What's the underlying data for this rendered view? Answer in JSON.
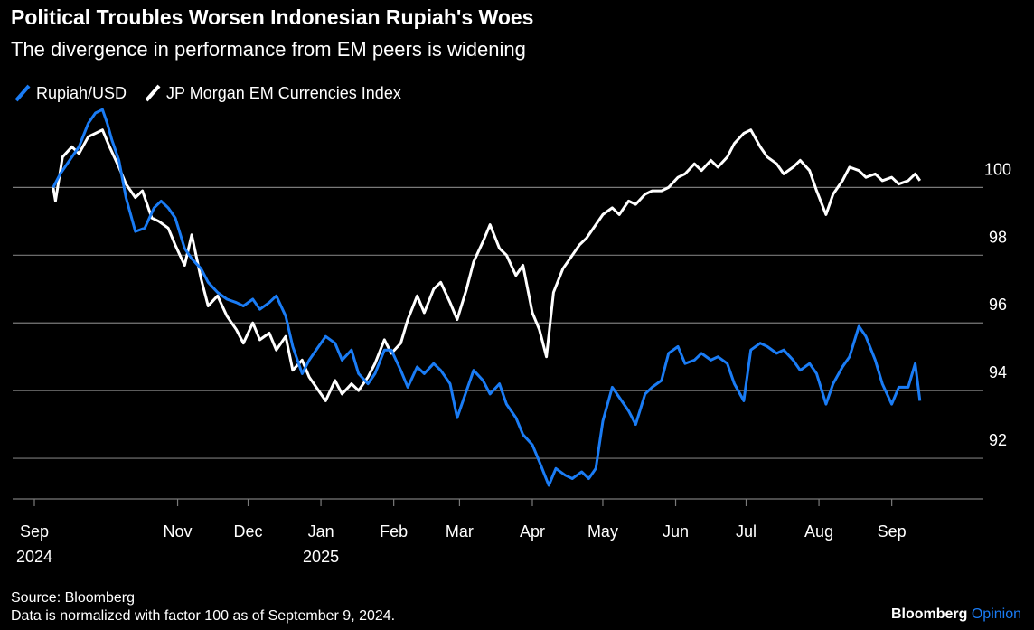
{
  "chart_data": {
    "type": "line",
    "title": "Political Troubles Worsen Indonesian Rupiah's Woes",
    "subtitle": "The divergence in performance from EM peers is widening",
    "x_ticks": [
      {
        "label": "Sep",
        "sublabel": "2024",
        "date": "2024-09-01"
      },
      {
        "label": "Nov",
        "sublabel": "",
        "date": "2024-11-01"
      },
      {
        "label": "Dec",
        "sublabel": "",
        "date": "2024-12-01"
      },
      {
        "label": "Jan",
        "sublabel": "2025",
        "date": "2025-01-01"
      },
      {
        "label": "Feb",
        "sublabel": "",
        "date": "2025-02-01"
      },
      {
        "label": "Mar",
        "sublabel": "",
        "date": "2025-03-01"
      },
      {
        "label": "Apr",
        "sublabel": "",
        "date": "2025-04-01"
      },
      {
        "label": "May",
        "sublabel": "",
        "date": "2025-05-01"
      },
      {
        "label": "Jun",
        "sublabel": "",
        "date": "2025-06-01"
      },
      {
        "label": "Jul",
        "sublabel": "",
        "date": "2025-07-01"
      },
      {
        "label": "Aug",
        "sublabel": "",
        "date": "2025-08-01"
      },
      {
        "label": "Sep",
        "sublabel": "",
        "date": "2025-09-01"
      }
    ],
    "y_ticks": [
      92,
      94,
      96,
      98,
      100
    ],
    "ylim": [
      90.8,
      102.6
    ],
    "xlim": [
      "2024-09-01",
      "2025-10-10"
    ],
    "grid": "horizontal",
    "legend_position": "top-left",
    "series": [
      {
        "name": "Rupiah/USD",
        "color": "#1a7cf5",
        "points": [
          [
            "2024-09-09",
            100.0
          ],
          [
            "2024-09-12",
            100.4
          ],
          [
            "2024-09-16",
            100.8
          ],
          [
            "2024-09-20",
            101.2
          ],
          [
            "2024-09-24",
            101.9
          ],
          [
            "2024-09-27",
            102.2
          ],
          [
            "2024-09-30",
            102.3
          ],
          [
            "2024-10-02",
            101.9
          ],
          [
            "2024-10-04",
            101.4
          ],
          [
            "2024-10-07",
            100.8
          ],
          [
            "2024-10-10",
            99.7
          ],
          [
            "2024-10-14",
            98.7
          ],
          [
            "2024-10-18",
            98.8
          ],
          [
            "2024-10-22",
            99.4
          ],
          [
            "2024-10-25",
            99.6
          ],
          [
            "2024-10-28",
            99.4
          ],
          [
            "2024-10-31",
            99.1
          ],
          [
            "2024-11-04",
            98.2
          ],
          [
            "2024-11-07",
            97.9
          ],
          [
            "2024-11-11",
            97.6
          ],
          [
            "2024-11-14",
            97.2
          ],
          [
            "2024-11-18",
            96.9
          ],
          [
            "2024-11-22",
            96.7
          ],
          [
            "2024-11-26",
            96.6
          ],
          [
            "2024-11-29",
            96.5
          ],
          [
            "2024-12-03",
            96.7
          ],
          [
            "2024-12-06",
            96.4
          ],
          [
            "2024-12-10",
            96.6
          ],
          [
            "2024-12-13",
            96.8
          ],
          [
            "2024-12-17",
            96.2
          ],
          [
            "2024-12-20",
            95.3
          ],
          [
            "2024-12-24",
            94.5
          ],
          [
            "2024-12-27",
            94.9
          ],
          [
            "2024-12-31",
            95.3
          ],
          [
            "2025-01-03",
            95.6
          ],
          [
            "2025-01-07",
            95.4
          ],
          [
            "2025-01-10",
            94.9
          ],
          [
            "2025-01-14",
            95.2
          ],
          [
            "2025-01-17",
            94.5
          ],
          [
            "2025-01-21",
            94.2
          ],
          [
            "2025-01-24",
            94.5
          ],
          [
            "2025-01-28",
            95.2
          ],
          [
            "2025-01-31",
            95.2
          ],
          [
            "2025-02-04",
            94.6
          ],
          [
            "2025-02-07",
            94.1
          ],
          [
            "2025-02-11",
            94.7
          ],
          [
            "2025-02-14",
            94.5
          ],
          [
            "2025-02-18",
            94.8
          ],
          [
            "2025-02-21",
            94.6
          ],
          [
            "2025-02-25",
            94.2
          ],
          [
            "2025-02-28",
            93.2
          ],
          [
            "2025-03-04",
            94.0
          ],
          [
            "2025-03-07",
            94.6
          ],
          [
            "2025-03-11",
            94.3
          ],
          [
            "2025-03-14",
            93.9
          ],
          [
            "2025-03-18",
            94.2
          ],
          [
            "2025-03-21",
            93.6
          ],
          [
            "2025-03-25",
            93.2
          ],
          [
            "2025-03-28",
            92.7
          ],
          [
            "2025-04-01",
            92.4
          ],
          [
            "2025-04-04",
            91.9
          ],
          [
            "2025-04-08",
            91.2
          ],
          [
            "2025-04-11",
            91.7
          ],
          [
            "2025-04-15",
            91.5
          ],
          [
            "2025-04-18",
            91.4
          ],
          [
            "2025-04-22",
            91.6
          ],
          [
            "2025-04-25",
            91.4
          ],
          [
            "2025-04-28",
            91.7
          ],
          [
            "2025-05-01",
            93.1
          ],
          [
            "2025-05-05",
            94.1
          ],
          [
            "2025-05-08",
            93.8
          ],
          [
            "2025-05-12",
            93.4
          ],
          [
            "2025-05-15",
            93.0
          ],
          [
            "2025-05-19",
            93.9
          ],
          [
            "2025-05-22",
            94.1
          ],
          [
            "2025-05-26",
            94.3
          ],
          [
            "2025-05-29",
            95.1
          ],
          [
            "2025-06-02",
            95.3
          ],
          [
            "2025-06-05",
            94.8
          ],
          [
            "2025-06-09",
            94.9
          ],
          [
            "2025-06-12",
            95.1
          ],
          [
            "2025-06-16",
            94.9
          ],
          [
            "2025-06-19",
            95.0
          ],
          [
            "2025-06-23",
            94.8
          ],
          [
            "2025-06-26",
            94.2
          ],
          [
            "2025-06-30",
            93.7
          ],
          [
            "2025-07-03",
            95.2
          ],
          [
            "2025-07-07",
            95.4
          ],
          [
            "2025-07-10",
            95.3
          ],
          [
            "2025-07-14",
            95.1
          ],
          [
            "2025-07-17",
            95.2
          ],
          [
            "2025-07-21",
            94.9
          ],
          [
            "2025-07-24",
            94.6
          ],
          [
            "2025-07-28",
            94.8
          ],
          [
            "2025-07-31",
            94.5
          ],
          [
            "2025-08-04",
            93.6
          ],
          [
            "2025-08-07",
            94.2
          ],
          [
            "2025-08-11",
            94.7
          ],
          [
            "2025-08-14",
            95.0
          ],
          [
            "2025-08-18",
            95.9
          ],
          [
            "2025-08-21",
            95.6
          ],
          [
            "2025-08-25",
            94.9
          ],
          [
            "2025-08-28",
            94.2
          ],
          [
            "2025-09-01",
            93.6
          ],
          [
            "2025-09-04",
            94.1
          ],
          [
            "2025-09-08",
            94.1
          ],
          [
            "2025-09-11",
            94.8
          ],
          [
            "2025-09-13",
            93.7
          ]
        ]
      },
      {
        "name": "JP Morgan EM Currencies Index",
        "color": "#ffffff",
        "points": [
          [
            "2024-09-09",
            100.0
          ],
          [
            "2024-09-10",
            99.6
          ],
          [
            "2024-09-13",
            100.9
          ],
          [
            "2024-09-17",
            101.2
          ],
          [
            "2024-09-20",
            101.0
          ],
          [
            "2024-09-24",
            101.5
          ],
          [
            "2024-09-27",
            101.6
          ],
          [
            "2024-09-30",
            101.7
          ],
          [
            "2024-10-03",
            101.2
          ],
          [
            "2024-10-07",
            100.6
          ],
          [
            "2024-10-10",
            100.1
          ],
          [
            "2024-10-14",
            99.7
          ],
          [
            "2024-10-17",
            99.9
          ],
          [
            "2024-10-21",
            99.1
          ],
          [
            "2024-10-24",
            99.0
          ],
          [
            "2024-10-28",
            98.8
          ],
          [
            "2024-10-31",
            98.3
          ],
          [
            "2024-11-04",
            97.7
          ],
          [
            "2024-11-07",
            98.6
          ],
          [
            "2024-11-11",
            97.3
          ],
          [
            "2024-11-14",
            96.5
          ],
          [
            "2024-11-18",
            96.8
          ],
          [
            "2024-11-22",
            96.2
          ],
          [
            "2024-11-26",
            95.8
          ],
          [
            "2024-11-29",
            95.4
          ],
          [
            "2024-12-03",
            96.0
          ],
          [
            "2024-12-06",
            95.5
          ],
          [
            "2024-12-10",
            95.7
          ],
          [
            "2024-12-13",
            95.2
          ],
          [
            "2024-12-17",
            95.6
          ],
          [
            "2024-12-20",
            94.6
          ],
          [
            "2024-12-24",
            94.9
          ],
          [
            "2024-12-27",
            94.4
          ],
          [
            "2024-12-31",
            94.0
          ],
          [
            "2025-01-03",
            93.7
          ],
          [
            "2025-01-07",
            94.3
          ],
          [
            "2025-01-10",
            93.9
          ],
          [
            "2025-01-14",
            94.2
          ],
          [
            "2025-01-17",
            94.0
          ],
          [
            "2025-01-21",
            94.4
          ],
          [
            "2025-01-24",
            94.8
          ],
          [
            "2025-01-28",
            95.5
          ],
          [
            "2025-01-31",
            95.1
          ],
          [
            "2025-02-04",
            95.4
          ],
          [
            "2025-02-07",
            96.1
          ],
          [
            "2025-02-11",
            96.8
          ],
          [
            "2025-02-14",
            96.3
          ],
          [
            "2025-02-18",
            97.0
          ],
          [
            "2025-02-21",
            97.2
          ],
          [
            "2025-02-25",
            96.6
          ],
          [
            "2025-02-28",
            96.1
          ],
          [
            "2025-03-04",
            97.0
          ],
          [
            "2025-03-07",
            97.8
          ],
          [
            "2025-03-11",
            98.4
          ],
          [
            "2025-03-14",
            98.9
          ],
          [
            "2025-03-18",
            98.2
          ],
          [
            "2025-03-21",
            98.0
          ],
          [
            "2025-03-25",
            97.4
          ],
          [
            "2025-03-28",
            97.7
          ],
          [
            "2025-04-01",
            96.3
          ],
          [
            "2025-04-04",
            95.8
          ],
          [
            "2025-04-07",
            95.0
          ],
          [
            "2025-04-10",
            96.9
          ],
          [
            "2025-04-14",
            97.6
          ],
          [
            "2025-04-17",
            97.9
          ],
          [
            "2025-04-21",
            98.3
          ],
          [
            "2025-04-24",
            98.5
          ],
          [
            "2025-04-28",
            98.9
          ],
          [
            "2025-05-01",
            99.2
          ],
          [
            "2025-05-05",
            99.4
          ],
          [
            "2025-05-08",
            99.2
          ],
          [
            "2025-05-12",
            99.6
          ],
          [
            "2025-05-15",
            99.5
          ],
          [
            "2025-05-19",
            99.8
          ],
          [
            "2025-05-22",
            99.9
          ],
          [
            "2025-05-26",
            99.9
          ],
          [
            "2025-05-29",
            100.0
          ],
          [
            "2025-06-02",
            100.3
          ],
          [
            "2025-06-05",
            100.4
          ],
          [
            "2025-06-09",
            100.7
          ],
          [
            "2025-06-12",
            100.5
          ],
          [
            "2025-06-16",
            100.8
          ],
          [
            "2025-06-19",
            100.6
          ],
          [
            "2025-06-23",
            100.9
          ],
          [
            "2025-06-26",
            101.3
          ],
          [
            "2025-06-30",
            101.6
          ],
          [
            "2025-07-03",
            101.7
          ],
          [
            "2025-07-07",
            101.2
          ],
          [
            "2025-07-10",
            100.9
          ],
          [
            "2025-07-14",
            100.7
          ],
          [
            "2025-07-17",
            100.4
          ],
          [
            "2025-07-21",
            100.6
          ],
          [
            "2025-07-24",
            100.8
          ],
          [
            "2025-07-28",
            100.5
          ],
          [
            "2025-07-31",
            99.9
          ],
          [
            "2025-08-04",
            99.2
          ],
          [
            "2025-08-07",
            99.8
          ],
          [
            "2025-08-11",
            100.2
          ],
          [
            "2025-08-14",
            100.6
          ],
          [
            "2025-08-18",
            100.5
          ],
          [
            "2025-08-21",
            100.3
          ],
          [
            "2025-08-25",
            100.4
          ],
          [
            "2025-08-28",
            100.2
          ],
          [
            "2025-09-01",
            100.3
          ],
          [
            "2025-09-04",
            100.1
          ],
          [
            "2025-09-08",
            100.2
          ],
          [
            "2025-09-11",
            100.4
          ],
          [
            "2025-09-13",
            100.2
          ]
        ]
      }
    ]
  },
  "legend": {
    "items": [
      {
        "label": "Rupiah/USD",
        "color": "#1a7cf5"
      },
      {
        "label": "JP Morgan EM Currencies Index",
        "color": "#ffffff"
      }
    ]
  },
  "footer": {
    "source": "Source: Bloomberg",
    "note": "Data is normalized with factor 100 as of September 9, 2024.",
    "brand_main": "Bloomberg",
    "brand_sub": "Opinion",
    "brand_sub_color": "#1a7cf5"
  },
  "colors": {
    "background": "#000000",
    "gridline": "#7a7a7a",
    "text": "#ffffff"
  }
}
